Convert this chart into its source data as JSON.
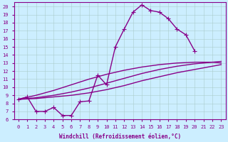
{
  "xlabel": "Windchill (Refroidissement éolien,°C)",
  "bg_color": "#cceeff",
  "line_color": "#880088",
  "xlim": [
    -0.5,
    23.5
  ],
  "ylim": [
    6,
    20.5
  ],
  "xticks": [
    0,
    1,
    2,
    3,
    4,
    5,
    6,
    7,
    8,
    9,
    10,
    11,
    12,
    13,
    14,
    15,
    16,
    17,
    18,
    19,
    20,
    21,
    22,
    23
  ],
  "yticks": [
    6,
    7,
    8,
    9,
    10,
    11,
    12,
    13,
    14,
    15,
    16,
    17,
    18,
    19,
    20
  ],
  "main_x": [
    0,
    1,
    2,
    3,
    4,
    5,
    6,
    7,
    8,
    9,
    10,
    11,
    12,
    13,
    14,
    15,
    16,
    17,
    18,
    19,
    20
  ],
  "main_y": [
    8.5,
    8.8,
    7.0,
    7.0,
    7.5,
    6.5,
    6.5,
    8.2,
    8.3,
    11.5,
    10.3,
    15.0,
    17.2,
    19.3,
    20.2,
    19.5,
    19.3,
    18.5,
    17.2,
    16.5,
    14.5
  ],
  "curve_a_x": [
    0,
    2,
    4,
    6,
    8,
    10,
    12,
    14,
    16,
    18,
    20,
    22,
    23
  ],
  "curve_a_y": [
    8.5,
    8.6,
    8.8,
    9.0,
    9.3,
    9.7,
    10.2,
    10.8,
    11.3,
    11.8,
    12.2,
    12.6,
    12.8
  ],
  "curve_b_x": [
    0,
    2,
    4,
    6,
    8,
    10,
    12,
    14,
    16,
    18,
    20,
    22,
    23
  ],
  "curve_b_y": [
    8.5,
    8.7,
    9.0,
    9.4,
    9.9,
    10.5,
    11.1,
    11.7,
    12.2,
    12.6,
    12.9,
    13.1,
    13.2
  ],
  "curve_c_x": [
    0,
    2,
    4,
    6,
    8,
    10,
    12,
    14,
    16,
    18,
    20,
    21,
    22,
    23
  ],
  "curve_c_y": [
    8.5,
    9.0,
    9.6,
    10.3,
    11.0,
    11.6,
    12.1,
    12.5,
    12.8,
    13.0,
    13.1,
    13.1,
    13.1,
    13.0
  ],
  "linewidth": 1.0,
  "marker_size": 4,
  "grid_color": "#aacccc",
  "grid_alpha": 0.8
}
